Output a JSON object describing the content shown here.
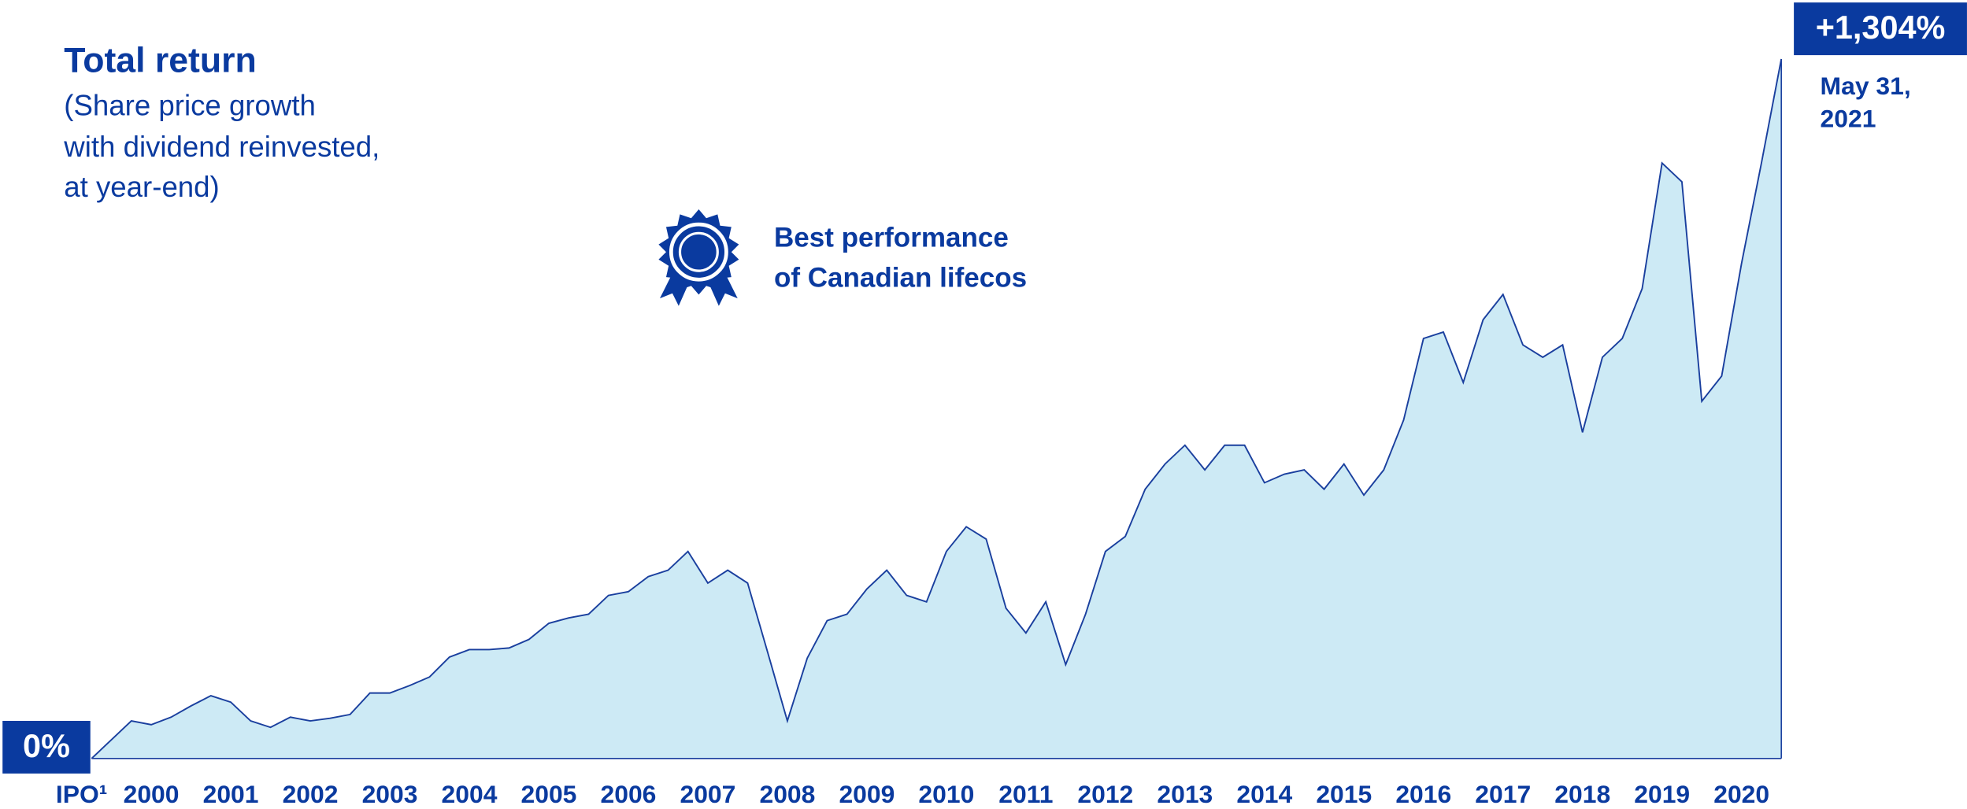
{
  "chart_data": {
    "type": "area",
    "title": "Total return",
    "subtitle": [
      "(Share price growth",
      "with dividend reinvested,",
      "at year-end)"
    ],
    "annotation": [
      "Best performance",
      "of Canadian lifecos"
    ],
    "end_date": [
      "May 31,",
      "2021"
    ],
    "categories": [
      "IPO¹",
      null,
      null,
      "2000",
      null,
      null,
      null,
      "2001",
      null,
      null,
      null,
      "2002",
      null,
      null,
      null,
      "2003",
      null,
      null,
      null,
      "2004",
      null,
      null,
      null,
      "2005",
      null,
      null,
      null,
      "2006",
      null,
      null,
      null,
      "2007",
      null,
      null,
      null,
      "2008",
      null,
      null,
      null,
      "2009",
      null,
      null,
      null,
      "2010",
      null,
      null,
      null,
      "2011",
      null,
      null,
      null,
      "2012",
      null,
      null,
      null,
      "2013",
      null,
      null,
      null,
      "2014",
      null,
      null,
      null,
      "2015",
      null,
      null,
      null,
      "2016",
      null,
      null,
      null,
      "2017",
      null,
      null,
      null,
      "2018",
      null,
      null,
      null,
      "2019",
      null,
      null,
      null,
      "2020",
      null,
      null
    ],
    "values": [
      0,
      35,
      70,
      63,
      77,
      98,
      117,
      105,
      70,
      58,
      77,
      70,
      75,
      82,
      122,
      122,
      136,
      152,
      189,
      203,
      203,
      206,
      222,
      252,
      262,
      269,
      304,
      311,
      339,
      351,
      386,
      327,
      351,
      327,
      199,
      70,
      187,
      257,
      269,
      316,
      351,
      304,
      292,
      386,
      432,
      409,
      280,
      234,
      292,
      175,
      269,
      386,
      414,
      502,
      549,
      584,
      538,
      584,
      584,
      514,
      530,
      538,
      502,
      549,
      491,
      538,
      631,
      783,
      795,
      701,
      818,
      865,
      771,
      748,
      771,
      608,
      748,
      783,
      876,
      1110,
      1075,
      666,
      713,
      923,
      1110,
      1304
    ],
    "value_labels": [
      "0%",
      null,
      null,
      null,
      null,
      null,
      null,
      null,
      null,
      null,
      null,
      null,
      null,
      null,
      null,
      null,
      null,
      null,
      null,
      null,
      null,
      null,
      null,
      null,
      null,
      null,
      null,
      null,
      null,
      null,
      null,
      null,
      null,
      null,
      null,
      null,
      null,
      null,
      null,
      null,
      null,
      null,
      null,
      null,
      null,
      null,
      null,
      null,
      null,
      null,
      null,
      null,
      null,
      null,
      null,
      null,
      null,
      null,
      null,
      null,
      null,
      null,
      null,
      null,
      null,
      null,
      null,
      null,
      null,
      null,
      null,
      null,
      null,
      null,
      null,
      null,
      null,
      null,
      null,
      null,
      null,
      null,
      null,
      null,
      null,
      "+1,304%"
    ],
    "ylim": [
      0,
      1400
    ],
    "color": "#1a3f9e",
    "fill": "#cdeaf5",
    "label_color": "#0a3a9f"
  }
}
